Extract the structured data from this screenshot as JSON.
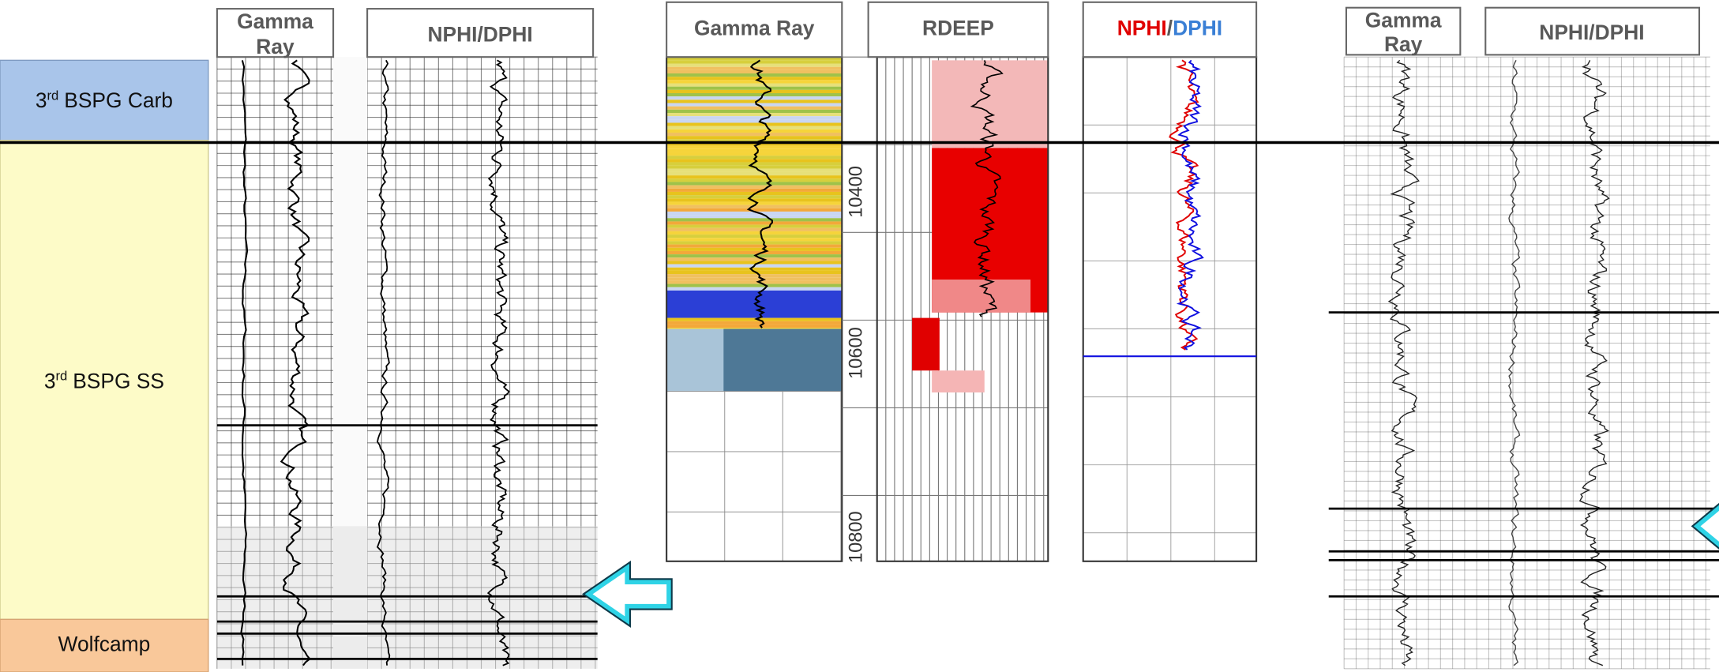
{
  "zones": [
    {
      "number": "3",
      "suffix": "rd",
      "name": "BSPG Carb"
    },
    {
      "number": "3",
      "suffix": "rd",
      "name": "BSPG SS"
    },
    {
      "name": "Wolfcamp"
    }
  ],
  "left_panel": {
    "gamma_header_lines": [
      "Gamma",
      "Ray"
    ],
    "porosity_header": "NPHI/DPHI"
  },
  "middle_panel": {
    "gamma_header": "Gamma Ray",
    "resistivity_header": "RDEEP",
    "porosity_header": {
      "neutron": "NPHI",
      "separator": "/",
      "density": "DPHI"
    },
    "depths": [
      10400,
      10600,
      10800
    ]
  },
  "right_panel": {
    "gamma_header_lines": [
      "Gamma",
      "Ray"
    ],
    "porosity_header": "NPHI/DPHI"
  }
}
